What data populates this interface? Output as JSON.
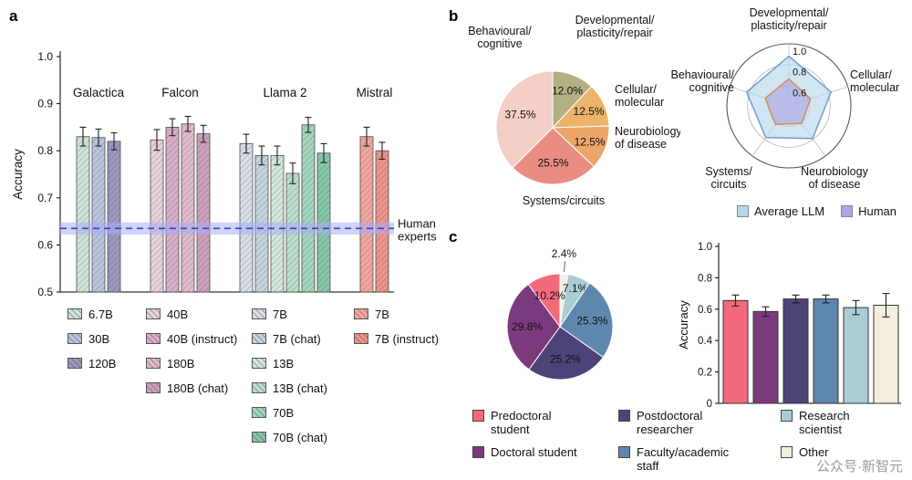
{
  "watermark": "公众号·新智元",
  "panels": {
    "a": "a",
    "b": "b",
    "c": "c"
  },
  "chart_data": [
    {
      "id": "model_accuracy",
      "type": "bar",
      "ylabel": "Accuracy",
      "ylim": [
        0.5,
        1.0
      ],
      "yticks": [
        0.5,
        0.6,
        0.7,
        0.8,
        0.9,
        1.0
      ],
      "groups": [
        {
          "name": "Galactica",
          "bars": [
            {
              "label": "6.7B",
              "value": 0.83,
              "error": 0.02,
              "color": "#cfe3d8"
            },
            {
              "label": "30B",
              "value": 0.828,
              "error": 0.018,
              "color": "#b9c4dd"
            },
            {
              "label": "120B",
              "value": 0.82,
              "error": 0.018,
              "color": "#9e97bd"
            }
          ]
        },
        {
          "name": "Falcon",
          "bars": [
            {
              "label": "40B",
              "value": 0.823,
              "error": 0.022,
              "color": "#e8d2de"
            },
            {
              "label": "40B (instruct)",
              "value": 0.85,
              "error": 0.018,
              "color": "#d9aec9"
            },
            {
              "label": "180B",
              "value": 0.857,
              "error": 0.016,
              "color": "#e3bacd"
            },
            {
              "label": "180B (chat)",
              "value": 0.836,
              "error": 0.018,
              "color": "#cfa0bb"
            }
          ]
        },
        {
          "name": "Llama 2",
          "bars": [
            {
              "label": "7B",
              "value": 0.815,
              "error": 0.02,
              "color": "#d8dfe8"
            },
            {
              "label": "7B (chat)",
              "value": 0.79,
              "error": 0.02,
              "color": "#c5d4de"
            },
            {
              "label": "13B",
              "value": 0.79,
              "error": 0.02,
              "color": "#d2e8dc"
            },
            {
              "label": "13B (chat)",
              "value": 0.752,
              "error": 0.022,
              "color": "#bbdfca"
            },
            {
              "label": "70B",
              "value": 0.855,
              "error": 0.016,
              "color": "#a2d6bd"
            },
            {
              "label": "70B (chat)",
              "value": 0.795,
              "error": 0.02,
              "color": "#86c6a9"
            }
          ]
        },
        {
          "name": "Mistral",
          "bars": [
            {
              "label": "7B",
              "value": 0.83,
              "error": 0.02,
              "color": "#f2a89f"
            },
            {
              "label": "7B (instruct)",
              "value": 0.8,
              "error": 0.018,
              "color": "#ee948a"
            }
          ]
        }
      ],
      "human_experts": {
        "label": "Human experts",
        "value": 0.635,
        "band": [
          0.622,
          0.648
        ],
        "line_color": "#3d3dc2",
        "band_color": "#a9aef2"
      }
    },
    {
      "id": "subfield_pie",
      "type": "pie",
      "slices": [
        {
          "label": "Developmental/plasticity/repair",
          "pct": 12.0,
          "color": "#b3b183"
        },
        {
          "label": "Cellular/molecular",
          "pct": 12.5,
          "color": "#ecb36b"
        },
        {
          "label": "Neurobiology of disease",
          "pct": 12.5,
          "color": "#eca66a"
        },
        {
          "label": "Systems/circuits",
          "pct": 25.5,
          "color": "#e98d82"
        },
        {
          "label": "Behavioural/cognitive",
          "pct": 37.5,
          "color": "#f3cfc8"
        }
      ]
    },
    {
      "id": "subfield_radar",
      "type": "radar",
      "axes": [
        "Developmental/plasticity/repair",
        "Cellular/molecular",
        "Neurobiology of disease",
        "Systems/circuits",
        "Behavioural/cognitive"
      ],
      "rings": [
        0.6,
        0.8,
        1.0
      ],
      "rmin": 0.4,
      "series": [
        {
          "name": "Average LLM",
          "color": "#b9d7ec",
          "stroke": "#6f9fc8",
          "values": [
            0.88,
            0.83,
            0.79,
            0.78,
            0.83
          ]
        },
        {
          "name": "Human",
          "color": "#aca6e3",
          "stroke": "#e08a4c",
          "values": [
            0.66,
            0.62,
            0.61,
            0.62,
            0.64
          ]
        }
      ]
    },
    {
      "id": "participants_pie",
      "type": "pie",
      "slices": [
        {
          "label": "Other",
          "pct": 2.4,
          "color": "#f4eede"
        },
        {
          "label": "Research scientist",
          "pct": 7.1,
          "color": "#aacdd5"
        },
        {
          "label": "Faculty/academic staff",
          "pct": 25.3,
          "color": "#5f87ae"
        },
        {
          "label": "Postdoctoral researcher",
          "pct": 25.2,
          "color": "#4e4379"
        },
        {
          "label": "Doctoral student",
          "pct": 29.8,
          "color": "#7c3a7e"
        },
        {
          "label": "Predoctoral student",
          "pct": 10.2,
          "color": "#f46a7d"
        }
      ]
    },
    {
      "id": "participants_accuracy",
      "type": "bar",
      "ylabel": "Accuracy",
      "ylim": [
        0,
        1.0
      ],
      "yticks": [
        0,
        0.2,
        0.4,
        0.6,
        0.8,
        1.0
      ],
      "bars": [
        {
          "label": "Predoctoral student",
          "value": 0.655,
          "error": 0.035,
          "color": "#f46a7d"
        },
        {
          "label": "Doctoral student",
          "value": 0.585,
          "error": 0.03,
          "color": "#7c3a7e"
        },
        {
          "label": "Postdoctoral researcher",
          "value": 0.665,
          "error": 0.025,
          "color": "#4e4379"
        },
        {
          "label": "Faculty/academic staff",
          "value": 0.665,
          "error": 0.025,
          "color": "#5f87ae"
        },
        {
          "label": "Research scientist",
          "value": 0.61,
          "error": 0.045,
          "color": "#aacdd5"
        },
        {
          "label": "Other",
          "value": 0.625,
          "error": 0.075,
          "color": "#f4eede"
        }
      ]
    }
  ],
  "legend_b": [
    {
      "label": "Average LLM",
      "color": "#b9d7ec"
    },
    {
      "label": "Human",
      "color": "#aca6e3"
    }
  ],
  "legend_c": [
    {
      "label": "Predoctoral student",
      "color": "#f46a7d"
    },
    {
      "label": "Doctoral student",
      "color": "#7c3a7e"
    },
    {
      "label": "Postdoctoral researcher",
      "color": "#4e4379"
    },
    {
      "label": "Faculty/academic staff",
      "color": "#5f87ae"
    },
    {
      "label": "Research scientist",
      "color": "#aacdd5"
    },
    {
      "label": "Other",
      "color": "#f4eede"
    }
  ]
}
